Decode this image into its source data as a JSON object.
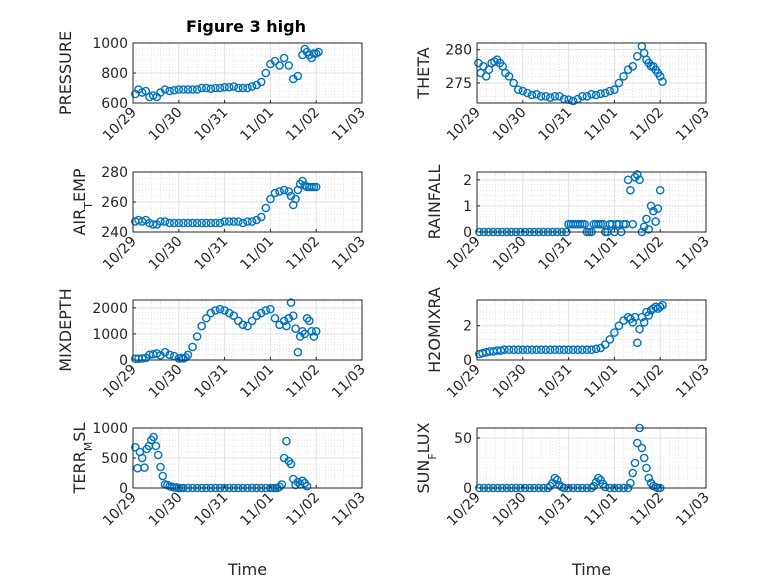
{
  "figure_title": "Figure 3 high",
  "colors": {
    "marker": "#0072BD",
    "axis": "#262626",
    "grid": "#dcdcdc"
  },
  "chart_data": [
    {
      "id": "pressure",
      "type": "scatter",
      "title": "Figure 3 high",
      "ylabel": "PRESSURE",
      "ylabel_sub": "",
      "ylabel_main_after": "",
      "ylim": [
        600,
        1000
      ],
      "yticks": [
        600,
        800,
        1000
      ],
      "xlim": [
        0,
        5
      ],
      "xticks": [
        "10/29",
        "10/30",
        "10/31",
        "11/01",
        "11/02",
        "11/03"
      ],
      "xlabel": "",
      "x": [
        0.05,
        0.12,
        0.2,
        0.28,
        0.36,
        0.44,
        0.52,
        0.6,
        0.7,
        0.8,
        0.9,
        1.0,
        1.1,
        1.2,
        1.3,
        1.4,
        1.5,
        1.6,
        1.7,
        1.8,
        1.9,
        2.0,
        2.1,
        2.2,
        2.3,
        2.4,
        2.5,
        2.6,
        2.7,
        2.8,
        2.9,
        3.0,
        3.1,
        3.2,
        3.3,
        3.4,
        3.5,
        3.6,
        3.7,
        3.75,
        3.8,
        3.85,
        3.9,
        3.95,
        4.0,
        4.05
      ],
      "y": [
        660,
        690,
        670,
        680,
        640,
        650,
        640,
        670,
        690,
        680,
        685,
        690,
        690,
        690,
        690,
        690,
        700,
        700,
        695,
        700,
        700,
        705,
        705,
        710,
        700,
        700,
        700,
        710,
        720,
        740,
        800,
        860,
        880,
        850,
        900,
        850,
        760,
        780,
        920,
        960,
        940,
        920,
        900,
        930,
        930,
        940
      ]
    },
    {
      "id": "theta",
      "type": "scatter",
      "title": "",
      "ylabel": "THETA",
      "ylabel_sub": "",
      "ylabel_main_after": "",
      "ylim": [
        272,
        281
      ],
      "yticks": [
        275,
        280
      ],
      "xlim": [
        0,
        5
      ],
      "xticks": [
        "10/29",
        "10/30",
        "10/31",
        "11/01",
        "11/02",
        "11/03"
      ],
      "xlabel": "",
      "x": [
        0.03,
        0.08,
        0.14,
        0.2,
        0.26,
        0.32,
        0.38,
        0.44,
        0.5,
        0.56,
        0.62,
        0.7,
        0.8,
        0.9,
        1.0,
        1.1,
        1.2,
        1.3,
        1.4,
        1.5,
        1.6,
        1.7,
        1.8,
        1.9,
        2.0,
        2.1,
        2.2,
        2.3,
        2.4,
        2.5,
        2.6,
        2.7,
        2.8,
        2.9,
        3.0,
        3.1,
        3.2,
        3.3,
        3.4,
        3.5,
        3.6,
        3.65,
        3.7,
        3.75,
        3.8,
        3.85,
        3.9,
        3.95,
        4.0,
        4.05
      ],
      "y": [
        278,
        276.5,
        277.5,
        276,
        277,
        278,
        278.2,
        278.5,
        278,
        277.5,
        276.5,
        276,
        275,
        274,
        273.8,
        273.5,
        273.2,
        273.3,
        273,
        273,
        272.8,
        273,
        273,
        272.6,
        272.5,
        272.3,
        272.6,
        273,
        273,
        273.3,
        273.2,
        273.4,
        273.5,
        273.8,
        274,
        275,
        276,
        277,
        277.5,
        279,
        280.5,
        279.5,
        278.5,
        278,
        277.5,
        277.5,
        277,
        276.5,
        276,
        275.2
      ]
    },
    {
      "id": "air_temp",
      "type": "scatter",
      "title": "",
      "ylabel": "AIR",
      "ylabel_sub": "T",
      "ylabel_main_after": "EMP",
      "ylim": [
        240,
        280
      ],
      "yticks": [
        240,
        260,
        280
      ],
      "xlim": [
        0,
        5
      ],
      "xticks": [
        "10/29",
        "10/30",
        "10/31",
        "11/01",
        "11/02",
        "11/03"
      ],
      "xlabel": "",
      "x": [
        0.05,
        0.12,
        0.2,
        0.28,
        0.36,
        0.44,
        0.52,
        0.6,
        0.7,
        0.8,
        0.9,
        1.0,
        1.1,
        1.2,
        1.3,
        1.4,
        1.5,
        1.6,
        1.7,
        1.8,
        1.9,
        2.0,
        2.1,
        2.2,
        2.3,
        2.4,
        2.5,
        2.6,
        2.7,
        2.8,
        2.9,
        3.0,
        3.1,
        3.2,
        3.3,
        3.4,
        3.45,
        3.5,
        3.55,
        3.6,
        3.65,
        3.7,
        3.75,
        3.8,
        3.85,
        3.9,
        3.95,
        4.0
      ],
      "y": [
        247,
        248,
        247,
        248,
        246,
        245,
        245,
        247,
        247,
        246,
        246,
        246,
        246,
        246,
        246,
        246,
        246,
        246,
        246,
        246,
        246,
        247,
        247,
        247,
        247,
        246,
        247,
        247,
        248,
        250,
        256,
        262,
        266,
        267,
        268,
        267,
        264,
        258,
        262,
        268,
        272,
        274,
        271,
        270,
        270,
        270,
        270,
        270
      ]
    },
    {
      "id": "rainfall",
      "type": "scatter",
      "title": "",
      "ylabel": "RAINFALL",
      "ylabel_sub": "",
      "ylabel_main_after": "",
      "ylim": [
        0,
        2.3
      ],
      "yticks": [
        0,
        1,
        2
      ],
      "xlim": [
        0,
        5
      ],
      "xticks": [
        "10/29",
        "10/30",
        "10/31",
        "11/01",
        "11/02",
        "11/03"
      ],
      "xlabel": "",
      "x": [
        0.05,
        0.15,
        0.25,
        0.35,
        0.45,
        0.55,
        0.65,
        0.75,
        0.85,
        0.95,
        1.05,
        1.15,
        1.25,
        1.35,
        1.45,
        1.55,
        1.65,
        1.75,
        1.85,
        1.95,
        2.0,
        2.05,
        2.1,
        2.15,
        2.2,
        2.25,
        2.3,
        2.35,
        2.4,
        2.45,
        2.5,
        2.55,
        2.6,
        2.65,
        2.7,
        2.75,
        2.8,
        2.85,
        2.9,
        2.95,
        3.0,
        3.05,
        3.1,
        3.15,
        3.2,
        3.25,
        3.3,
        3.35,
        3.4,
        3.45,
        3.5,
        3.55,
        3.6,
        3.65,
        3.7,
        3.75,
        3.8,
        3.85,
        3.9,
        3.95,
        4.0
      ],
      "y": [
        0,
        0,
        0,
        0,
        0,
        0,
        0,
        0,
        0,
        0,
        0,
        0,
        0,
        0,
        0,
        0,
        0,
        0,
        0,
        0,
        0.3,
        0.3,
        0.3,
        0.3,
        0.3,
        0.3,
        0.3,
        0.3,
        0,
        0,
        0,
        0.3,
        0.3,
        0.3,
        0.3,
        0.3,
        0,
        0,
        0.3,
        0.3,
        0,
        0.3,
        0.3,
        0,
        0.3,
        0.3,
        2.0,
        1.6,
        0.3,
        2.1,
        2.2,
        2.0,
        0,
        0.2,
        0.5,
        0.1,
        1.0,
        0.8,
        0.4,
        0.9,
        1.6
      ]
    },
    {
      "id": "mixdepth",
      "type": "scatter",
      "title": "",
      "ylabel": "MIXDEPTH",
      "ylabel_sub": "",
      "ylabel_main_after": "",
      "ylim": [
        0,
        2300
      ],
      "yticks": [
        0,
        1000,
        2000
      ],
      "xlim": [
        0,
        5
      ],
      "xticks": [
        "10/29",
        "10/30",
        "10/31",
        "11/01",
        "11/02",
        "11/03"
      ],
      "xlabel": "",
      "x": [
        0.05,
        0.12,
        0.2,
        0.28,
        0.36,
        0.44,
        0.52,
        0.6,
        0.7,
        0.8,
        0.9,
        1.0,
        1.05,
        1.1,
        1.15,
        1.2,
        1.3,
        1.4,
        1.5,
        1.6,
        1.7,
        1.8,
        1.9,
        2.0,
        2.1,
        2.2,
        2.3,
        2.4,
        2.5,
        2.6,
        2.7,
        2.8,
        2.9,
        3.0,
        3.1,
        3.2,
        3.3,
        3.35,
        3.4,
        3.45,
        3.5,
        3.55,
        3.6,
        3.65,
        3.7,
        3.75,
        3.8,
        3.85,
        3.9,
        3.95,
        4.0
      ],
      "y": [
        50,
        50,
        60,
        80,
        200,
        220,
        250,
        180,
        300,
        200,
        150,
        60,
        80,
        60,
        100,
        200,
        500,
        900,
        1300,
        1600,
        1800,
        1900,
        1950,
        1900,
        1800,
        1700,
        1500,
        1350,
        1300,
        1500,
        1700,
        1800,
        1900,
        1950,
        1600,
        1350,
        1500,
        1300,
        1600,
        2200,
        1700,
        1200,
        300,
        900,
        1100,
        1000,
        1600,
        1500,
        1100,
        900,
        1100
      ]
    },
    {
      "id": "h2omixra",
      "type": "scatter",
      "title": "",
      "ylabel": "H2OMIXRA",
      "ylabel_sub": "",
      "ylabel_main_after": "",
      "ylim": [
        0,
        3.5
      ],
      "yticks": [
        0,
        2
      ],
      "xlim": [
        0,
        5
      ],
      "xticks": [
        "10/29",
        "10/30",
        "10/31",
        "11/01",
        "11/02",
        "11/03"
      ],
      "xlabel": "",
      "x": [
        0.05,
        0.12,
        0.2,
        0.28,
        0.36,
        0.44,
        0.52,
        0.6,
        0.7,
        0.8,
        0.9,
        1.0,
        1.1,
        1.2,
        1.3,
        1.4,
        1.5,
        1.6,
        1.7,
        1.8,
        1.9,
        2.0,
        2.1,
        2.2,
        2.3,
        2.4,
        2.5,
        2.6,
        2.7,
        2.8,
        2.9,
        3.0,
        3.1,
        3.2,
        3.3,
        3.35,
        3.4,
        3.45,
        3.5,
        3.55,
        3.6,
        3.65,
        3.7,
        3.75,
        3.8,
        3.85,
        3.9,
        3.95,
        4.0,
        4.05
      ],
      "y": [
        0.35,
        0.4,
        0.45,
        0.5,
        0.5,
        0.55,
        0.55,
        0.6,
        0.6,
        0.6,
        0.6,
        0.6,
        0.6,
        0.6,
        0.6,
        0.6,
        0.6,
        0.6,
        0.6,
        0.6,
        0.6,
        0.6,
        0.6,
        0.6,
        0.6,
        0.6,
        0.6,
        0.65,
        0.7,
        0.9,
        1.2,
        1.6,
        2.0,
        2.3,
        2.5,
        2.4,
        2.2,
        2.5,
        1.0,
        1.8,
        2.5,
        2.2,
        2.8,
        2.6,
        2.9,
        3.0,
        3.1,
        3.0,
        3.1,
        3.2
      ]
    },
    {
      "id": "terr_msl",
      "type": "scatter",
      "title": "",
      "ylabel": "TERR",
      "ylabel_sub": "M",
      "ylabel_main_after": "SL",
      "ylim": [
        0,
        1000
      ],
      "yticks": [
        0,
        500,
        1000
      ],
      "xlim": [
        0,
        5
      ],
      "xticks": [
        "10/29",
        "10/30",
        "10/31",
        "11/01",
        "11/02",
        "11/03"
      ],
      "xlabel": "Time",
      "x": [
        0.05,
        0.1,
        0.15,
        0.2,
        0.25,
        0.3,
        0.35,
        0.4,
        0.45,
        0.5,
        0.55,
        0.6,
        0.65,
        0.7,
        0.75,
        0.8,
        0.85,
        0.9,
        0.95,
        1.0,
        1.05,
        1.1,
        1.2,
        1.3,
        1.4,
        1.5,
        1.6,
        1.7,
        1.8,
        1.9,
        2.0,
        2.1,
        2.2,
        2.3,
        2.4,
        2.5,
        2.6,
        2.7,
        2.8,
        2.9,
        3.0,
        3.05,
        3.1,
        3.15,
        3.2,
        3.25,
        3.3,
        3.35,
        3.4,
        3.45,
        3.5,
        3.55,
        3.6,
        3.65,
        3.7,
        3.75,
        3.8
      ],
      "y": [
        680,
        330,
        600,
        500,
        340,
        650,
        700,
        800,
        850,
        700,
        550,
        350,
        200,
        60,
        50,
        30,
        20,
        10,
        10,
        0,
        0,
        0,
        0,
        0,
        0,
        0,
        0,
        0,
        0,
        0,
        0,
        0,
        0,
        0,
        0,
        0,
        0,
        0,
        0,
        0,
        0,
        0,
        0,
        0,
        20,
        60,
        500,
        780,
        450,
        400,
        150,
        50,
        100,
        60,
        120,
        80,
        30
      ]
    },
    {
      "id": "sun_flux",
      "type": "scatter",
      "title": "",
      "ylabel": "SUN",
      "ylabel_sub": "F",
      "ylabel_main_after": "LUX",
      "ylim": [
        0,
        60
      ],
      "yticks": [
        0,
        50
      ],
      "xlim": [
        0,
        5
      ],
      "xticks": [
        "10/29",
        "10/30",
        "10/31",
        "11/01",
        "11/02",
        "11/03"
      ],
      "xlabel": "Time",
      "x": [
        0.05,
        0.15,
        0.25,
        0.35,
        0.45,
        0.55,
        0.65,
        0.75,
        0.85,
        0.95,
        1.05,
        1.15,
        1.25,
        1.35,
        1.45,
        1.55,
        1.6,
        1.65,
        1.7,
        1.75,
        1.8,
        1.85,
        1.9,
        2.0,
        2.1,
        2.2,
        2.3,
        2.4,
        2.5,
        2.55,
        2.6,
        2.65,
        2.7,
        2.75,
        2.8,
        2.9,
        3.0,
        3.1,
        3.2,
        3.3,
        3.35,
        3.4,
        3.45,
        3.5,
        3.55,
        3.6,
        3.65,
        3.7,
        3.75,
        3.8,
        3.85,
        3.9,
        3.95,
        4.0
      ],
      "y": [
        0,
        0,
        0,
        0,
        0,
        0,
        0,
        0,
        0,
        0,
        0,
        0,
        0,
        0,
        0,
        0,
        2,
        5,
        10,
        8,
        3,
        1,
        0,
        0,
        0,
        0,
        0,
        0,
        0,
        2,
        6,
        10,
        8,
        4,
        1,
        0,
        0,
        0,
        0,
        0,
        5,
        15,
        25,
        45,
        60,
        40,
        30,
        20,
        10,
        5,
        2,
        1,
        0,
        0
      ]
    }
  ]
}
